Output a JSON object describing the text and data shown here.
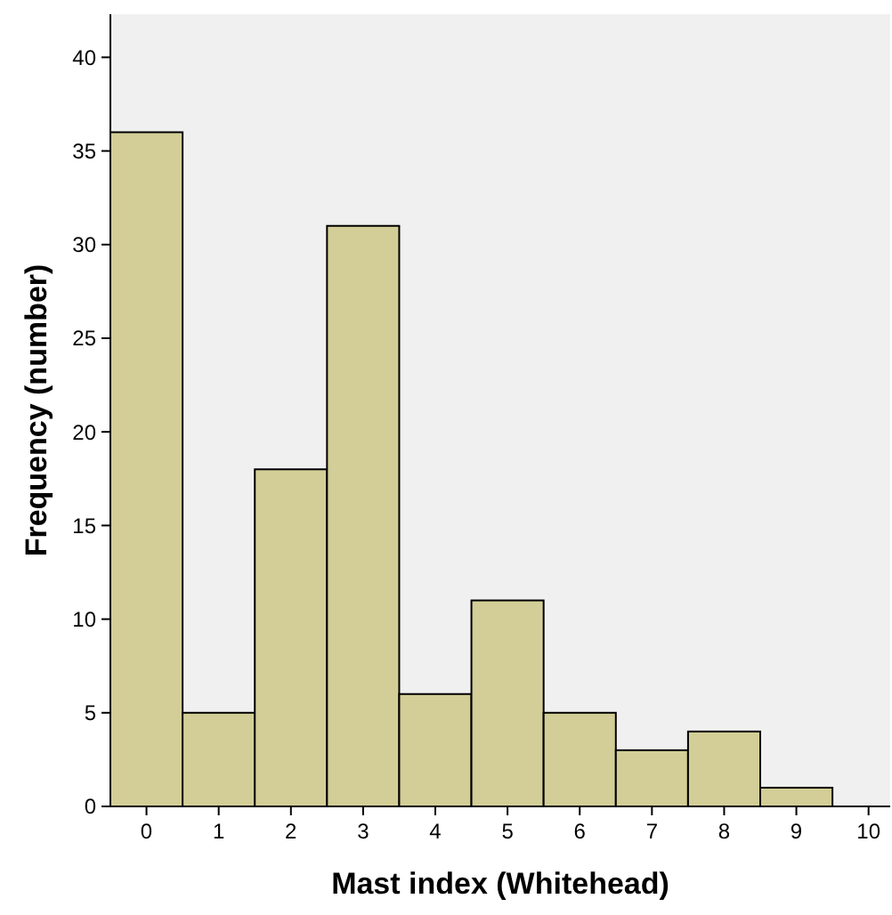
{
  "chart_data": {
    "type": "histogram",
    "xlabel": "Mast index (Whitehead)",
    "ylabel": "Frequency (number)",
    "bins": [
      -0.5,
      0.5,
      1.5,
      2.5,
      3.5,
      4.5,
      5.5,
      6.5,
      7.5,
      8.5,
      9.5
    ],
    "values": [
      36,
      5,
      18,
      31,
      6,
      11,
      5,
      3,
      4,
      1
    ],
    "color": "#d3ce97",
    "xlim": [
      -0.5,
      10.3
    ],
    "xticks": [
      0,
      1,
      2,
      3,
      4,
      5,
      6,
      7,
      8,
      9,
      10
    ],
    "ylim": [
      0,
      42.3
    ],
    "yticks": [
      0,
      5,
      10,
      15,
      20,
      25,
      30,
      35,
      40
    ],
    "grid": false
  }
}
